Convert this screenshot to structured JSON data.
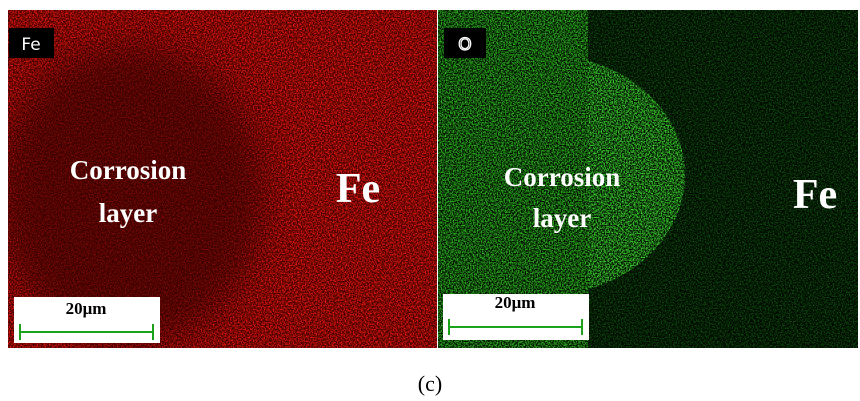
{
  "panels": [
    {
      "badge": "Fe",
      "region_lines": [
        "Corrosion",
        "layer"
      ],
      "phase_label": "Fe",
      "scale_bar": "20μm"
    },
    {
      "badge": "O",
      "region_lines": [
        "Corrosion",
        "layer"
      ],
      "phase_label": "Fe",
      "scale_bar": "20μm"
    }
  ],
  "caption": "(c)"
}
